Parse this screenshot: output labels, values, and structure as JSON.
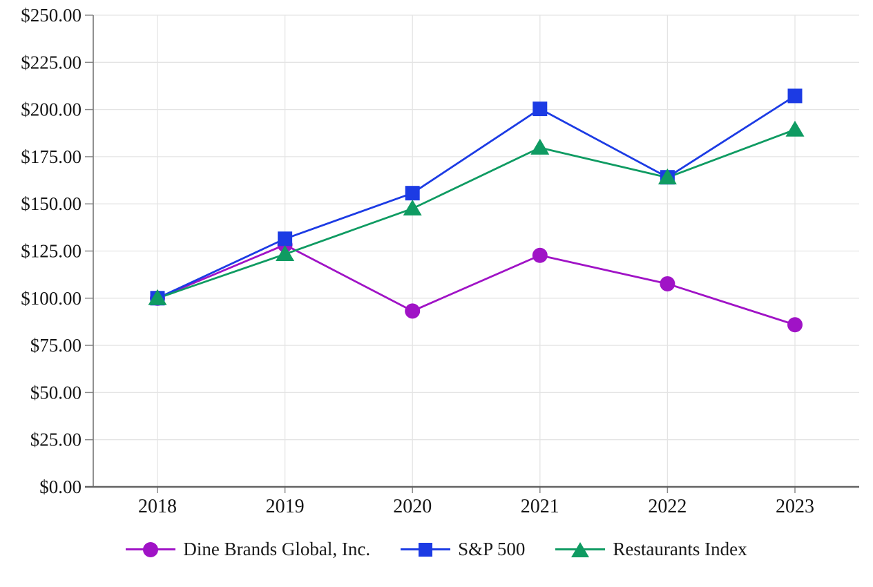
{
  "chart_data": {
    "type": "line",
    "title": "",
    "xlabel": "",
    "ylabel": "",
    "categories": [
      "2018",
      "2019",
      "2020",
      "2021",
      "2022",
      "2023"
    ],
    "series": [
      {
        "name": "Dine Brands Global, Inc.",
        "marker": "circle",
        "color": "#A013C6",
        "values": [
          100.0,
          128.31,
          93.19,
          122.72,
          107.63,
          85.93
        ]
      },
      {
        "name": "S&P 500",
        "marker": "square",
        "color": "#1C3BE4",
        "values": [
          100.0,
          131.49,
          155.68,
          200.37,
          164.08,
          207.21
        ]
      },
      {
        "name": "Restaurants Index",
        "marker": "triangle",
        "color": "#0F9B62",
        "values": [
          100.0,
          123.33,
          147.5,
          179.78,
          163.97,
          189.35
        ]
      }
    ],
    "ylim": [
      0,
      250
    ],
    "y_tick_step": 25,
    "y_tick_labels": [
      "$0.00",
      "$25.00",
      "$50.00",
      "$75.00",
      "$100.00",
      "$125.00",
      "$150.00",
      "$175.00",
      "$200.00",
      "$225.00",
      "$250.00"
    ],
    "grid": "both",
    "legend_position": "bottom",
    "colors": {
      "gridline": "#e4e4e4",
      "axis_vertical": "#7d7d7d",
      "axis_horizontal": "#636363",
      "tick": "#8a8a8a",
      "text": "#161616"
    }
  }
}
